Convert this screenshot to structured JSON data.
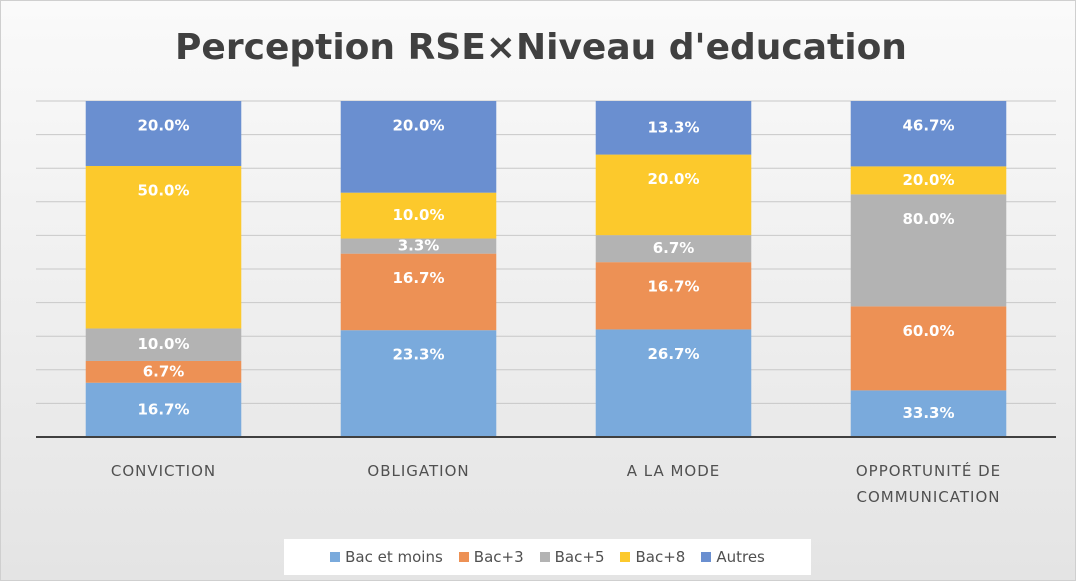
{
  "chart_data": {
    "type": "bar",
    "stacking": "percent",
    "title": "Perception RSE×Niveau d'education",
    "categories": [
      "CONVICTION",
      "OBLIGATION",
      "A LA MODE",
      "OPPORTUNITÉ DE COMMUNICATION"
    ],
    "series": [
      {
        "name": "Bac et moins",
        "color": "#7aaadc",
        "values": [
          16.7,
          23.3,
          26.7,
          33.3
        ],
        "value_labels": [
          "16.7%",
          "23.3%",
          "26.7%",
          "33.3%"
        ]
      },
      {
        "name": "Bac+3",
        "color": "#ed9155",
        "values": [
          6.7,
          16.7,
          16.7,
          60.0
        ],
        "value_labels": [
          "6.7%",
          "16.7%",
          "16.7%",
          "60.0%"
        ]
      },
      {
        "name": "Bac+5",
        "color": "#b3b3b3",
        "values": [
          10.0,
          3.3,
          6.7,
          80.0
        ],
        "value_labels": [
          "10.0%",
          "3.3%",
          "6.7%",
          "80.0%"
        ]
      },
      {
        "name": "Bac+8",
        "color": "#fcc92c",
        "values": [
          50.0,
          10.0,
          20.0,
          20.0
        ],
        "value_labels": [
          "50.0%",
          "10.0%",
          "20.0%",
          "20.0%"
        ]
      },
      {
        "name": "Autres",
        "color": "#6a8fd0",
        "values": [
          20.0,
          20.0,
          13.3,
          46.7
        ],
        "value_labels": [
          "20.0%",
          "20.0%",
          "13.3%",
          "46.7%"
        ]
      }
    ],
    "ylim": [
      0,
      100
    ],
    "yticks": [
      0,
      10,
      20,
      30,
      40,
      50,
      60,
      70,
      80,
      90,
      100
    ],
    "grid": true,
    "legend": "bottom"
  }
}
